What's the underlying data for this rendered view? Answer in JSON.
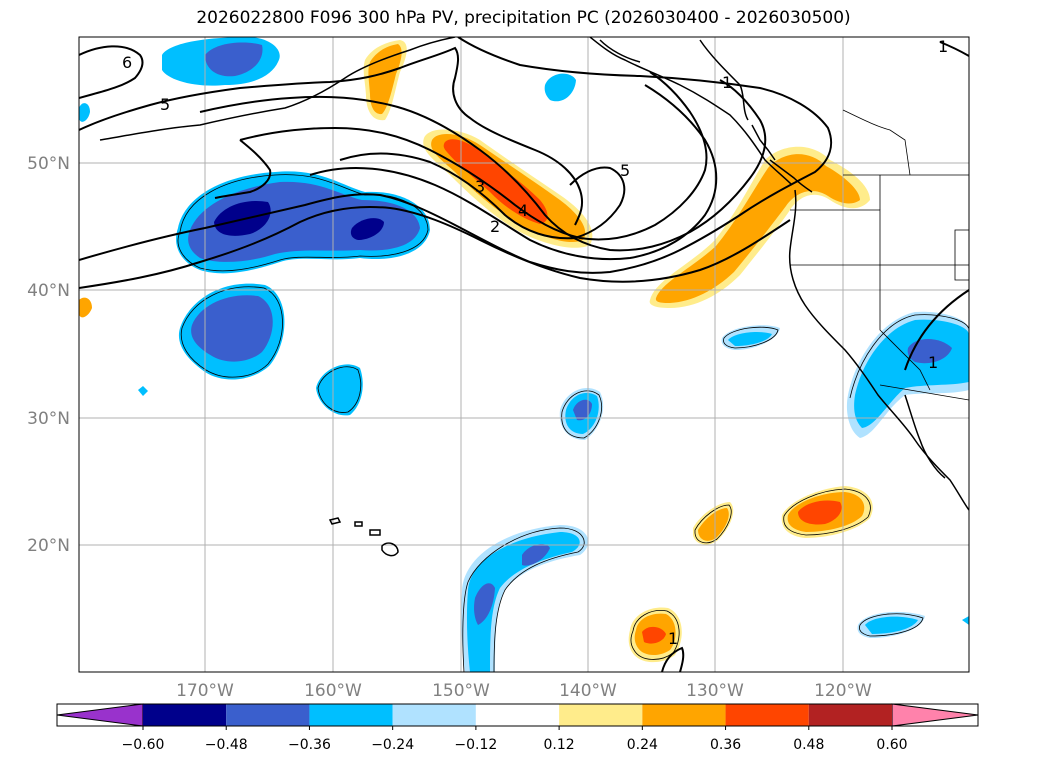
{
  "title": "2026022800 F096 300 hPa PV, precipitation PC (2026030400 - 2026030500)",
  "lat_labels": [
    "50°N",
    "40°N",
    "30°N",
    "20°N"
  ],
  "lon_labels": [
    "170°W",
    "160°W",
    "150°W",
    "140°W",
    "130°W",
    "120°W"
  ],
  "colorbar": {
    "ticks": [
      "−0.60",
      "−0.48",
      "−0.36",
      "−0.24",
      "−0.12",
      "0.12",
      "0.24",
      "0.36",
      "0.48",
      "0.60"
    ],
    "colors": [
      "#9932cc",
      "#00008b",
      "#3a5fcd",
      "#00bfff",
      "#b0e2ff",
      "#ffffff",
      "#ffec8b",
      "#ffa500",
      "#ff4500",
      "#b22222",
      "#ff82ab"
    ]
  },
  "contour_labels": [
    "6",
    "5",
    "1",
    "1",
    "5",
    "3",
    "4",
    "2",
    "1",
    "1"
  ],
  "colors": {
    "grid": "#b0b0b0",
    "coast": "#000000",
    "contour": "#000000"
  }
}
